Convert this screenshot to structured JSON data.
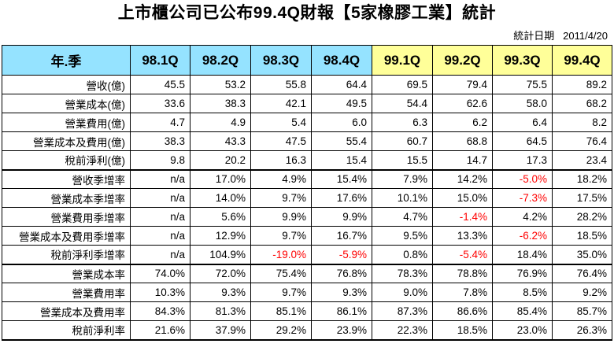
{
  "title": "上市櫃公司已公布99.4Q財報【5家橡膠工業】統計",
  "stat_date_label": "統計日期",
  "stat_date": "2011/4/20",
  "corner_label": "年.季",
  "quarters": [
    "98.1Q",
    "98.2Q",
    "98.3Q",
    "98.4Q",
    "99.1Q",
    "99.2Q",
    "99.3Q",
    "99.4Q"
  ],
  "colors": {
    "header_bg": "#95e3ff",
    "highlight_header_bg": "#ffff99",
    "negative": "#ff0000"
  },
  "rows": [
    {
      "label": "營收(億)",
      "values": [
        "45.5",
        "53.2",
        "55.8",
        "64.4",
        "69.5",
        "79.4",
        "75.5",
        "89.2"
      ]
    },
    {
      "label": "營業成本(億)",
      "values": [
        "33.6",
        "38.3",
        "42.1",
        "49.5",
        "54.4",
        "62.6",
        "58.0",
        "68.2"
      ]
    },
    {
      "label": "營業費用(億)",
      "values": [
        "4.7",
        "4.9",
        "5.4",
        "6.0",
        "6.3",
        "6.2",
        "6.4",
        "8.2"
      ]
    },
    {
      "label": "營業成本及費用(億)",
      "values": [
        "38.3",
        "43.3",
        "47.5",
        "55.4",
        "60.7",
        "68.8",
        "64.5",
        "76.4"
      ]
    },
    {
      "label": "稅前淨利(億)",
      "values": [
        "9.8",
        "20.2",
        "16.3",
        "15.4",
        "15.5",
        "14.7",
        "17.3",
        "23.4"
      ]
    },
    {
      "label": "營收季增率",
      "values": [
        "n/a",
        "17.0%",
        "4.9%",
        "15.4%",
        "7.9%",
        "14.2%",
        "-5.0%",
        "18.2%"
      ]
    },
    {
      "label": "營業成本季增率",
      "values": [
        "n/a",
        "14.0%",
        "9.7%",
        "17.6%",
        "10.1%",
        "15.0%",
        "-7.3%",
        "17.5%"
      ]
    },
    {
      "label": "營業費用季增率",
      "values": [
        "n/a",
        "5.6%",
        "9.9%",
        "9.9%",
        "4.7%",
        "-1.4%",
        "4.2%",
        "28.2%"
      ]
    },
    {
      "label": "營業成本及費用季增率",
      "values": [
        "n/a",
        "12.9%",
        "9.7%",
        "16.7%",
        "9.5%",
        "13.3%",
        "-6.2%",
        "18.5%"
      ]
    },
    {
      "label": "稅前淨利季增率",
      "values": [
        "n/a",
        "104.9%",
        "-19.0%",
        "-5.9%",
        "0.8%",
        "-5.4%",
        "18.4%",
        "35.0%"
      ]
    },
    {
      "label": "營業成本率",
      "values": [
        "74.0%",
        "72.0%",
        "75.4%",
        "76.8%",
        "78.3%",
        "78.8%",
        "76.9%",
        "76.4%"
      ]
    },
    {
      "label": "營業費用率",
      "values": [
        "10.3%",
        "9.3%",
        "9.7%",
        "9.3%",
        "9.0%",
        "7.8%",
        "8.5%",
        "9.2%"
      ]
    },
    {
      "label": "營業成本及費用率",
      "values": [
        "84.3%",
        "81.3%",
        "85.1%",
        "86.1%",
        "87.3%",
        "86.6%",
        "85.4%",
        "85.7%"
      ]
    },
    {
      "label": "稅前淨利率",
      "values": [
        "21.6%",
        "37.9%",
        "29.2%",
        "23.9%",
        "22.3%",
        "18.5%",
        "23.0%",
        "26.3%"
      ]
    }
  ]
}
